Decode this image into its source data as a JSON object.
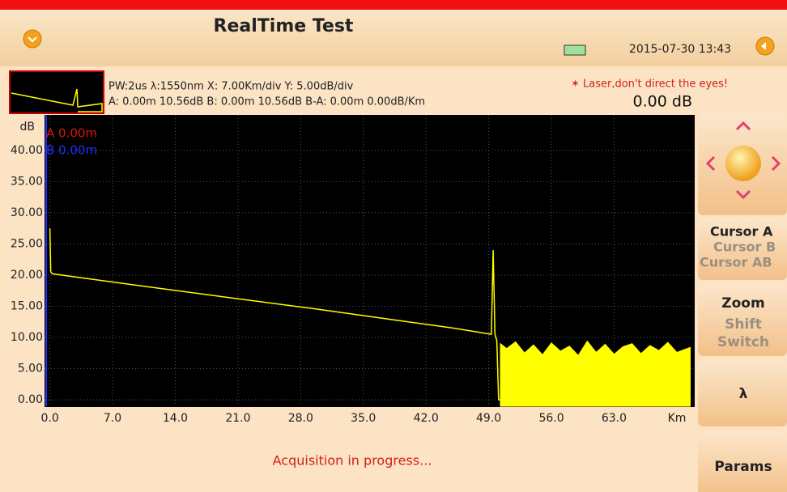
{
  "header": {
    "title": "RealTime Test",
    "datetime": "2015-07-30 13:43"
  },
  "info": {
    "line1": "PW:2us λ:1550nm  X: 7.00Km/div Y: 5.00dB/div",
    "line2": "A: 0.00m 10.56dB B: 0.00m 10.56dB B-A: 0.00m 0.00dB/Km",
    "warning": "Laser,don't direct the eyes!",
    "reading": "0.00 dB"
  },
  "chart_data": {
    "type": "line",
    "y_label": "dB",
    "x_label": "Km",
    "cursor_a_label": "A 0.00m",
    "cursor_b_label": "B 0.00m",
    "xlim": [
      -0.6,
      72
    ],
    "ylim": [
      0,
      45.7
    ],
    "xticks": [
      {
        "value": 0,
        "label": "0.0"
      },
      {
        "value": 7,
        "label": "7.0"
      },
      {
        "value": 14,
        "label": "14.0"
      },
      {
        "value": 21,
        "label": "21.0"
      },
      {
        "value": 28,
        "label": "28.0"
      },
      {
        "value": 35,
        "label": "35.0"
      },
      {
        "value": 42,
        "label": "42.0"
      },
      {
        "value": 49,
        "label": "49.0"
      },
      {
        "value": 56,
        "label": "56.0"
      },
      {
        "value": 63,
        "label": "63.0"
      }
    ],
    "yticks": [
      {
        "value": 0,
        "label": "0.00"
      },
      {
        "value": 5,
        "label": "5.00"
      },
      {
        "value": 10,
        "label": "10.00"
      },
      {
        "value": 15,
        "label": "15.00"
      },
      {
        "value": 20,
        "label": "20.00"
      },
      {
        "value": 25,
        "label": "25.00"
      },
      {
        "value": 30,
        "label": "30.00"
      },
      {
        "value": 35,
        "label": "35.00"
      },
      {
        "value": 40,
        "label": "40.00"
      }
    ],
    "grid": true,
    "series": [
      {
        "color": "#ffff00",
        "x": [
          0,
          0.1,
          0.3,
          10,
          20,
          30,
          40,
          45,
          49.3,
          49.5,
          49.7,
          49.9,
          50.1,
          50.3
        ],
        "values": [
          27.5,
          20.5,
          20.2,
          18.3,
          16.4,
          14.5,
          12.5,
          11.5,
          10.5,
          24,
          10.5,
          9.5,
          0,
          0
        ]
      },
      {
        "color": "#ffff00",
        "type": "area",
        "x": [
          50.3,
          51,
          52,
          53,
          54,
          55,
          56,
          57,
          58,
          59,
          60,
          61,
          62,
          63,
          64,
          65,
          66,
          67,
          68,
          69,
          70,
          71.5
        ],
        "values": [
          9,
          8.2,
          9.3,
          7.5,
          8.8,
          7.2,
          9.1,
          7.8,
          8.6,
          7.1,
          9.4,
          7.6,
          8.9,
          7.3,
          8.5,
          9,
          7.4,
          8.7,
          7.9,
          9.2,
          7.6,
          8.4
        ]
      }
    ]
  },
  "buttons": {
    "cursor": [
      "Cursor A",
      "Cursor B",
      "Cursor AB"
    ],
    "zoom": [
      "Zoom",
      "Shift",
      "Switch"
    ],
    "lambda": "λ",
    "params": "Params"
  },
  "status": "Acquisition in progress..."
}
